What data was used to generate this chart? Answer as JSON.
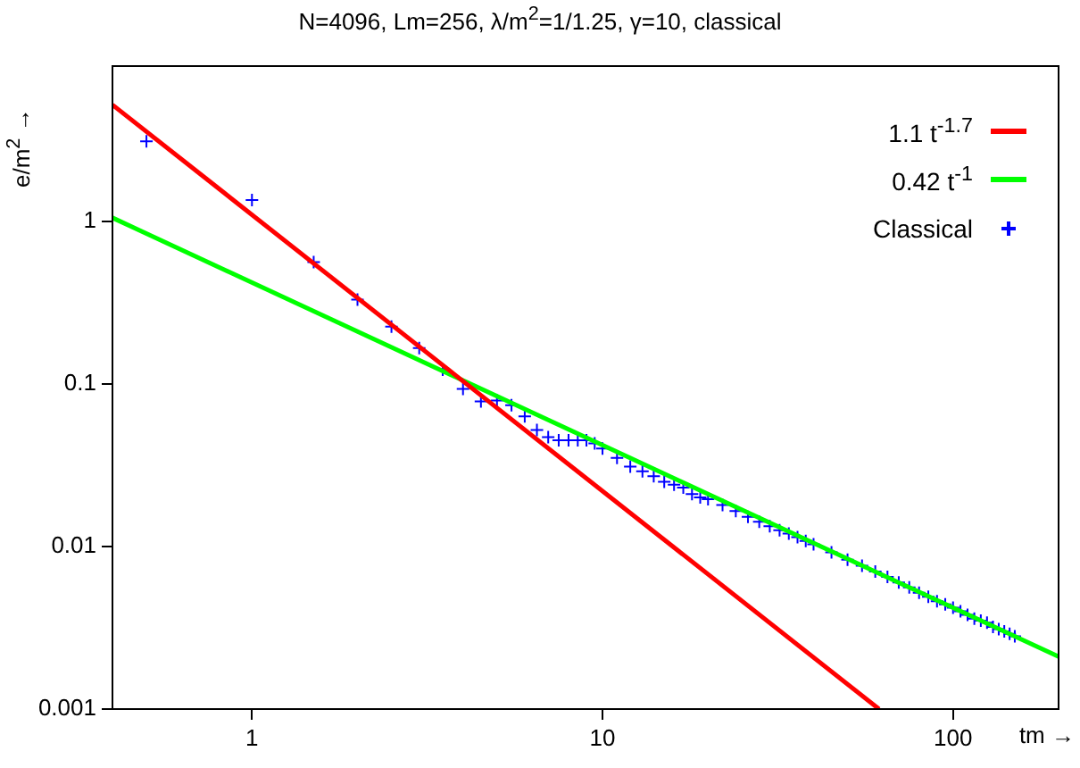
{
  "chart_data": {
    "type": "scatter",
    "title": "N=4096, Lm=256, λ/m$^{2}$=1/1.25, γ=10, classical",
    "xlabel": "tm →",
    "ylabel": "e/m$^{2}$ →",
    "log": "xy",
    "xlim": [
      0.4,
      200
    ],
    "ylim": [
      0.001,
      9
    ],
    "xticks": [
      1,
      10,
      100
    ],
    "yticks": [
      0.001,
      0.01,
      0.1,
      1
    ],
    "grid": false,
    "legend": "top right",
    "series": [
      {
        "name": "1.1 t$^{-1.7}$",
        "type": "line",
        "color": "#ff0000",
        "line_style": "solid",
        "marker": "none",
        "x": [
          0.4,
          61.5
        ],
        "values": [
          5.2,
          0.001
        ]
      },
      {
        "name": "0.42 t$^{-1}$",
        "type": "line",
        "color": "#00ff00",
        "line_style": "solid",
        "marker": "none",
        "x": [
          0.4,
          200
        ],
        "values": [
          1.05,
          0.0021
        ]
      },
      {
        "name": "Classical",
        "color": "#0000ff",
        "marker": "cross",
        "x": [
          0.5,
          1,
          1.5,
          2,
          2.5,
          3,
          3.5,
          4,
          4.5,
          5,
          5.5,
          6,
          6.5,
          7,
          7.5,
          8,
          8.5,
          9,
          9.5,
          10,
          11,
          12,
          13,
          14,
          15,
          16,
          17,
          18,
          19,
          20,
          22,
          24,
          26,
          28,
          30,
          32,
          34,
          36,
          38,
          40,
          45,
          50,
          55,
          60,
          65,
          70,
          75,
          80,
          85,
          90,
          95,
          100,
          105,
          110,
          115,
          120,
          125,
          130,
          135,
          140,
          145,
          150
        ],
        "values": [
          3.1,
          1.35,
          0.56,
          0.33,
          0.225,
          0.166,
          0.122,
          0.093,
          0.078,
          0.079,
          0.074,
          0.063,
          0.052,
          0.047,
          0.045,
          0.045,
          0.045,
          0.045,
          0.043,
          0.04,
          0.035,
          0.031,
          0.029,
          0.027,
          0.025,
          0.024,
          0.023,
          0.021,
          0.02,
          0.0195,
          0.018,
          0.0165,
          0.0152,
          0.0142,
          0.0133,
          0.0126,
          0.012,
          0.0114,
          0.0108,
          0.0103,
          0.0092,
          0.0083,
          0.0076,
          0.007,
          0.0065,
          0.006,
          0.0056,
          0.0052,
          0.0049,
          0.0046,
          0.0044,
          0.0042,
          0.004,
          0.0038,
          0.0036,
          0.0035,
          0.0034,
          0.0032,
          0.0031,
          0.003,
          0.0029,
          0.0028
        ]
      }
    ]
  }
}
